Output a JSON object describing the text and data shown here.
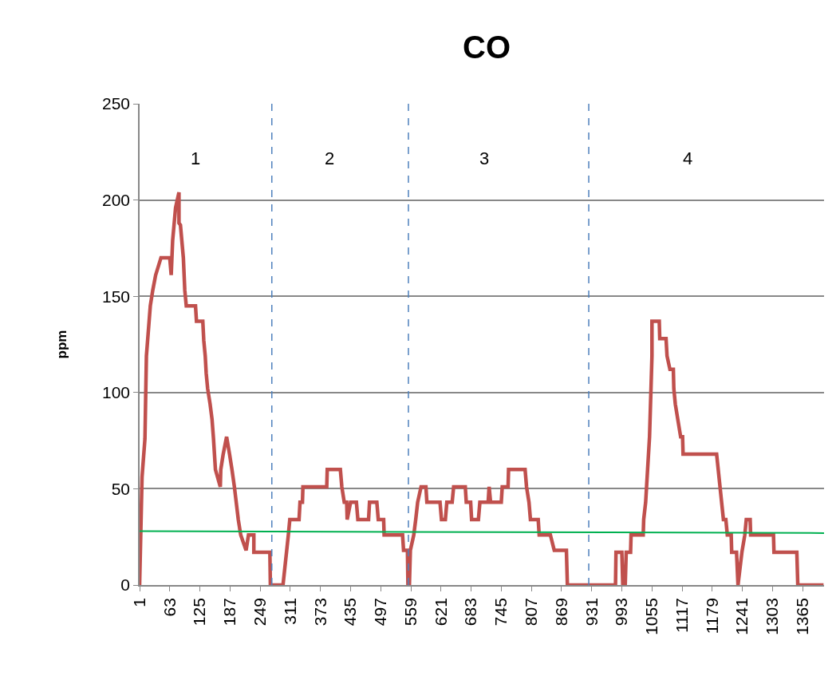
{
  "chart_data": {
    "type": "line",
    "title": "CO",
    "ylabel": "ppm",
    "xlim": [
      1,
      1409
    ],
    "xticks": [
      1,
      63,
      125,
      187,
      249,
      311,
      373,
      435,
      497,
      559,
      621,
      683,
      745,
      807,
      869,
      931,
      993,
      1055,
      1117,
      1179,
      1241,
      1303,
      1365
    ],
    "ylim": [
      0,
      250
    ],
    "yticks": [
      0,
      50,
      100,
      150,
      200,
      250
    ],
    "grid": "y",
    "marker": "none",
    "series": [
      {
        "color": "#c0504d",
        "line_style": "solid",
        "x": [
          1,
          6,
          12,
          15,
          23,
          28,
          34,
          45,
          63,
          66,
          69,
          75,
          82,
          82,
          85,
          91,
          94,
          97,
          116,
          118,
          131,
          133,
          136,
          138,
          141,
          146,
          150,
          153,
          157,
          167,
          168,
          173,
          180,
          186,
          191,
          196,
          204,
          209,
          220,
          225,
          236,
          236,
          269,
          270,
          296,
          307,
          310,
          329,
          331,
          336,
          337,
          386,
          387,
          414,
          417,
          422,
          427,
          428,
          435,
          447,
          450,
          472,
          474,
          489,
          492,
          503,
          504,
          542,
          544,
          552,
          553,
          556,
          558,
          565,
          569,
          573,
          580,
          590,
          592,
          619,
          622,
          630,
          633,
          644,
          647,
          671,
          673,
          682,
          684,
          698,
          701,
          718,
          720,
          723,
          745,
          747,
          759,
          760,
          794,
          797,
          802,
          805,
          821,
          823,
          846,
          854,
          879,
          881,
          980,
          981,
          993,
          995,
          1000,
          1002,
          1011,
          1012,
          1037,
          1038,
          1042,
          1046,
          1050,
          1053,
          1055,
          1055,
          1070,
          1071,
          1084,
          1086,
          1092,
          1099,
          1100,
          1103,
          1114,
          1118,
          1119,
          1188,
          1202,
          1207,
          1210,
          1218,
          1219,
          1229,
          1232,
          1240,
          1246,
          1249,
          1257,
          1258,
          1305,
          1306,
          1353,
          1355,
          1408
        ],
        "values": [
          0,
          56,
          76,
          119,
          145,
          153,
          161,
          170,
          170,
          161,
          179,
          196,
          204,
          188,
          187,
          170,
          153,
          145,
          145,
          137,
          137,
          127,
          119,
          110,
          102,
          94,
          86,
          76,
          60,
          51,
          60,
          68,
          77,
          68,
          60,
          51,
          34,
          26,
          18,
          26,
          26,
          17,
          17,
          0,
          0,
          26,
          34,
          34,
          43,
          43,
          51,
          51,
          60,
          60,
          51,
          43,
          43,
          34,
          43,
          43,
          34,
          34,
          43,
          43,
          34,
          34,
          26,
          26,
          18,
          18,
          0,
          0,
          18,
          26,
          34,
          43,
          51,
          51,
          43,
          43,
          34,
          34,
          43,
          43,
          51,
          51,
          43,
          43,
          34,
          34,
          43,
          43,
          51,
          43,
          43,
          51,
          51,
          60,
          60,
          51,
          43,
          34,
          34,
          26,
          26,
          18,
          18,
          0,
          0,
          17,
          17,
          0,
          0,
          17,
          17,
          26,
          26,
          34,
          43,
          60,
          77,
          102,
          119,
          137,
          137,
          128,
          128,
          119,
          112,
          112,
          102,
          94,
          77,
          77,
          68,
          68,
          34,
          34,
          26,
          26,
          17,
          17,
          0,
          17,
          26,
          34,
          34,
          26,
          26,
          17,
          17,
          0,
          0
        ]
      },
      {
        "color": "#00b050",
        "line_style": "solid",
        "x": [
          1,
          1409
        ],
        "values": [
          28,
          27
        ]
      }
    ],
    "ref_lines": [
      {
        "axis": "x",
        "value": 273,
        "color": "#4f81bd",
        "line_style": "dashed"
      },
      {
        "axis": "x",
        "value": 554,
        "color": "#4f81bd",
        "line_style": "dashed"
      },
      {
        "axis": "x",
        "value": 925,
        "color": "#4f81bd",
        "line_style": "dashed"
      }
    ],
    "annotations": [
      "1",
      "2",
      "3",
      "4"
    ]
  }
}
